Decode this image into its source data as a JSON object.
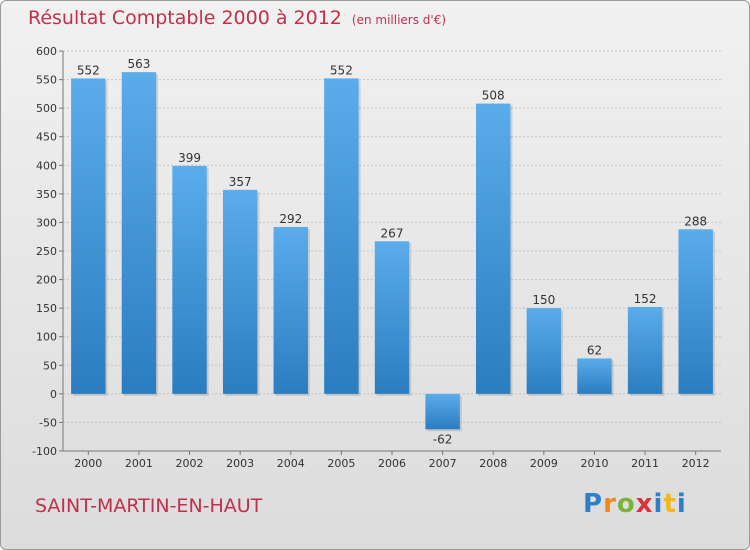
{
  "header": {
    "title": "Résultat Comptable 2000 à 2012",
    "unit": "(en milliers d'€)"
  },
  "footer": {
    "commune": "SAINT-MARTIN-EN-HAUT",
    "logo_letters": [
      "P",
      "r",
      "o",
      "x",
      "i",
      "t",
      "i"
    ]
  },
  "colors": {
    "title": "#c0304a",
    "bar_top": "#5aacea",
    "bar_bottom": "#2a7dc0"
  },
  "chart_data": {
    "type": "bar",
    "title": "Résultat Comptable 2000 à 2012",
    "subtitle": "(en milliers d'€)",
    "xlabel": "",
    "ylabel": "",
    "categories": [
      "2000",
      "2001",
      "2002",
      "2003",
      "2004",
      "2005",
      "2006",
      "2007",
      "2008",
      "2009",
      "2010",
      "2011",
      "2012"
    ],
    "values": [
      552,
      563,
      399,
      357,
      292,
      552,
      267,
      -62,
      508,
      150,
      62,
      152,
      288
    ],
    "ylim": [
      -100,
      600
    ],
    "yticks": [
      -100,
      -50,
      0,
      50,
      100,
      150,
      200,
      250,
      300,
      350,
      400,
      450,
      500,
      550,
      600
    ],
    "grid": true,
    "legend": "none"
  }
}
